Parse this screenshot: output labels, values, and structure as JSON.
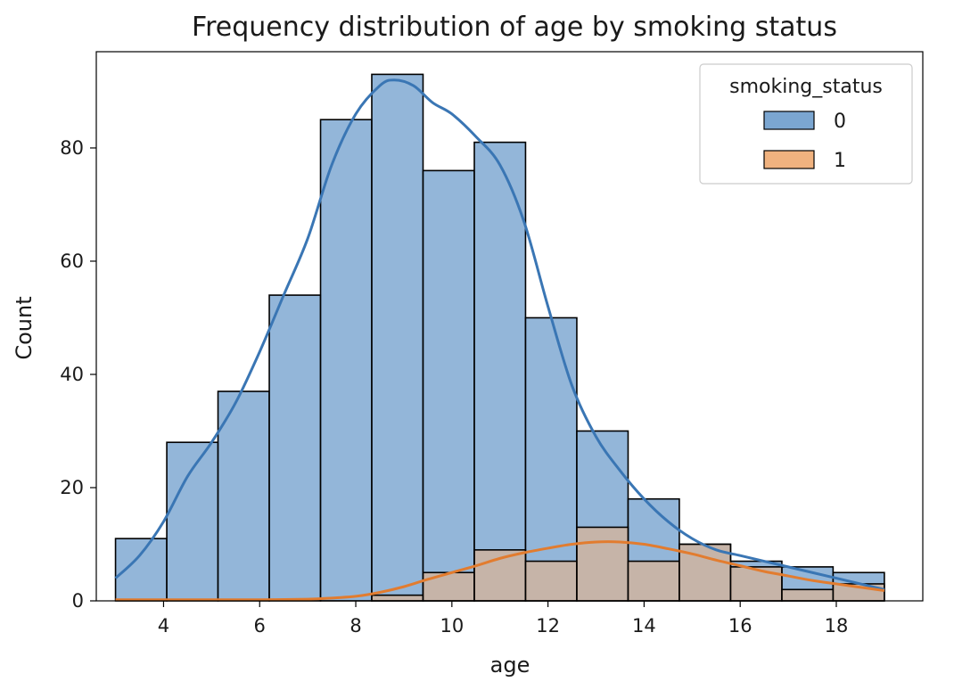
{
  "chart_data": {
    "type": "histogram",
    "title": "Frequency distribution of age by smoking status",
    "xlabel": "age",
    "ylabel": "Count",
    "xlim": [
      2.6,
      19.8
    ],
    "ylim": [
      0,
      97
    ],
    "xticks": [
      4,
      6,
      8,
      10,
      12,
      14,
      16,
      18
    ],
    "yticks": [
      0,
      20,
      40,
      60,
      80
    ],
    "bin_edges": [
      3.0,
      4.067,
      5.133,
      6.2,
      7.267,
      8.333,
      9.4,
      10.467,
      11.533,
      12.6,
      13.667,
      14.733,
      15.8,
      16.867,
      17.933,
      19.0
    ],
    "legend": {
      "title": "smoking_status",
      "position": "top-right"
    },
    "series": [
      {
        "name": "0",
        "color": "#7ba6d1",
        "kde_color": "#3a76b4",
        "values": [
          11,
          28,
          37,
          54,
          85,
          93,
          76,
          81,
          50,
          30,
          18,
          10,
          7,
          6,
          5
        ],
        "kde": [
          [
            3.0,
            4
          ],
          [
            3.5,
            8
          ],
          [
            4.0,
            14
          ],
          [
            4.5,
            22
          ],
          [
            5.0,
            28
          ],
          [
            5.5,
            35
          ],
          [
            6.0,
            44
          ],
          [
            6.5,
            54
          ],
          [
            7.0,
            64
          ],
          [
            7.5,
            77
          ],
          [
            8.0,
            86
          ],
          [
            8.5,
            91
          ],
          [
            8.8,
            92
          ],
          [
            9.2,
            91
          ],
          [
            9.6,
            88
          ],
          [
            10.0,
            86
          ],
          [
            10.5,
            82
          ],
          [
            11.0,
            77
          ],
          [
            11.5,
            67
          ],
          [
            12.0,
            52
          ],
          [
            12.5,
            38
          ],
          [
            13.0,
            29
          ],
          [
            13.5,
            23
          ],
          [
            14.0,
            18
          ],
          [
            14.5,
            14
          ],
          [
            15.0,
            11
          ],
          [
            15.5,
            9
          ],
          [
            16.0,
            8
          ],
          [
            16.5,
            7
          ],
          [
            17.0,
            6
          ],
          [
            17.5,
            5
          ],
          [
            18.0,
            4
          ],
          [
            18.5,
            3
          ],
          [
            19.0,
            2
          ]
        ]
      },
      {
        "name": "1",
        "color": "#f0b27f",
        "kde_color": "#e27c2f",
        "values": [
          0,
          0,
          0,
          0,
          0,
          1,
          5,
          9,
          7,
          13,
          7,
          10,
          6,
          2,
          3
        ],
        "kde": [
          [
            3.0,
            0.2
          ],
          [
            5.0,
            0.2
          ],
          [
            6.0,
            0.2
          ],
          [
            7.0,
            0.3
          ],
          [
            7.5,
            0.5
          ],
          [
            8.0,
            0.8
          ],
          [
            8.5,
            1.5
          ],
          [
            9.0,
            2.5
          ],
          [
            9.5,
            3.8
          ],
          [
            10.0,
            5.0
          ],
          [
            10.5,
            6.2
          ],
          [
            11.0,
            7.5
          ],
          [
            11.5,
            8.5
          ],
          [
            12.0,
            9.3
          ],
          [
            12.5,
            10.0
          ],
          [
            13.0,
            10.4
          ],
          [
            13.5,
            10.4
          ],
          [
            14.0,
            10.0
          ],
          [
            14.5,
            9.2
          ],
          [
            15.0,
            8.3
          ],
          [
            15.5,
            7.2
          ],
          [
            16.0,
            6.2
          ],
          [
            16.5,
            5.2
          ],
          [
            17.0,
            4.4
          ],
          [
            17.5,
            3.6
          ],
          [
            18.0,
            3.0
          ],
          [
            18.5,
            2.4
          ],
          [
            19.0,
            1.8
          ]
        ]
      }
    ]
  }
}
